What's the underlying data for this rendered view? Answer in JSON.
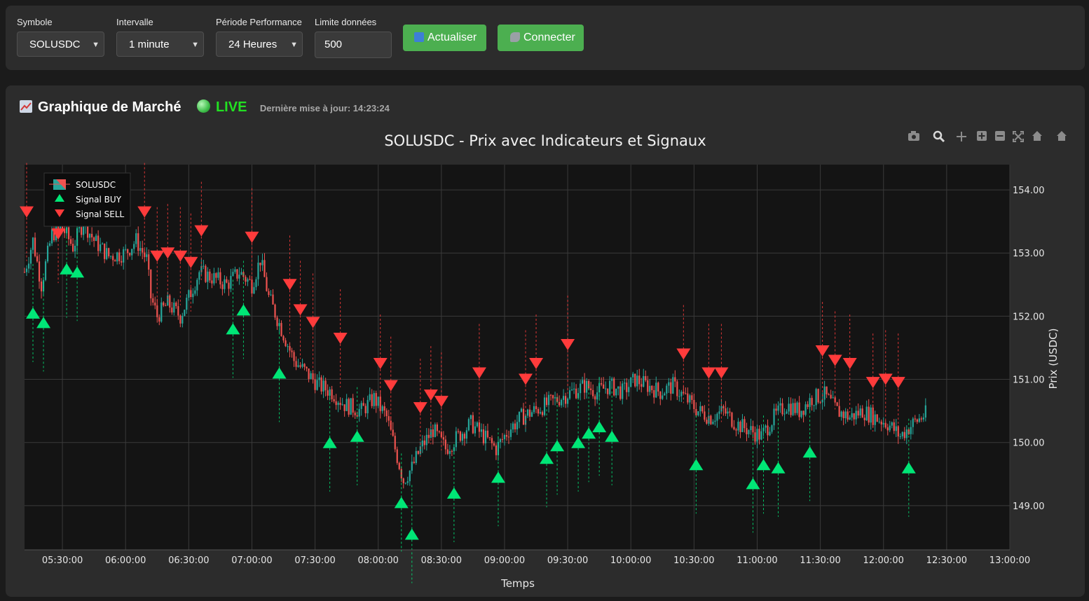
{
  "controls": {
    "symbol": {
      "label": "Symbole",
      "value": "SOLUSDC"
    },
    "interval": {
      "label": "Intervalle",
      "value": "1 minute"
    },
    "period": {
      "label": "Période Performance",
      "value": "24 Heures"
    },
    "limit": {
      "label": "Limite données",
      "value": "500"
    },
    "refresh_label": "Actualiser",
    "connect_label": "Connecter"
  },
  "header": {
    "title": "Graphique de Marché",
    "live_label": "LIVE",
    "last_update": "Dernière mise à jour: 14:23:24"
  },
  "toolbar_icons": [
    "camera-icon",
    "zoom-icon",
    "pan-icon",
    "zoom-in-icon",
    "zoom-out-icon",
    "autoscale-icon",
    "reset-axes-icon",
    "home-icon"
  ],
  "colors": {
    "up": "#26a69a",
    "down": "#ef5350",
    "buy": "#00e676",
    "sell": "#ff3b3b",
    "accent": "#4caf50"
  },
  "chart_data": {
    "type": "candlestick",
    "title": "SOLUSDC - Prix avec Indicateurs et Signaux",
    "xlabel": "Temps",
    "ylabel": "Prix (USDC)",
    "xlim": [
      "05:12:00",
      "13:00:00"
    ],
    "ylim": [
      148.3,
      154.4
    ],
    "x_ticks": [
      "05:30:00",
      "06:00:00",
      "06:30:00",
      "07:00:00",
      "07:30:00",
      "08:00:00",
      "08:30:00",
      "09:00:00",
      "09:30:00",
      "10:00:00",
      "10:30:00",
      "11:00:00",
      "11:30:00",
      "12:00:00",
      "12:30:00",
      "13:00:00"
    ],
    "y_ticks": [
      149,
      150,
      151,
      152,
      153,
      154
    ],
    "y_tick_labels": [
      "149.00",
      "150.00",
      "151.00",
      "152.00",
      "153.00",
      "154.00"
    ],
    "grid": true,
    "legend": {
      "position": "top-left",
      "items": [
        "SOLUSDC",
        "Signal BUY",
        "Signal SELL"
      ]
    },
    "price_path": [
      {
        "t": "05:12",
        "p": 152.7
      },
      {
        "t": "05:16",
        "p": 153.2
      },
      {
        "t": "05:20",
        "p": 152.5
      },
      {
        "t": "05:25",
        "p": 153.3
      },
      {
        "t": "05:30",
        "p": 153.4
      },
      {
        "t": "05:35",
        "p": 153.1
      },
      {
        "t": "05:40",
        "p": 153.5
      },
      {
        "t": "05:45",
        "p": 153.2
      },
      {
        "t": "05:52",
        "p": 152.95
      },
      {
        "t": "06:00",
        "p": 153.0
      },
      {
        "t": "06:05",
        "p": 153.2
      },
      {
        "t": "06:10",
        "p": 152.9
      },
      {
        "t": "06:12",
        "p": 152.3
      },
      {
        "t": "06:15",
        "p": 152.0
      },
      {
        "t": "06:20",
        "p": 152.2
      },
      {
        "t": "06:26",
        "p": 152.0
      },
      {
        "t": "06:30",
        "p": 152.3
      },
      {
        "t": "06:35",
        "p": 152.7
      },
      {
        "t": "06:42",
        "p": 152.6
      },
      {
        "t": "06:48",
        "p": 152.5
      },
      {
        "t": "06:54",
        "p": 152.7
      },
      {
        "t": "07:00",
        "p": 152.5
      },
      {
        "t": "07:04",
        "p": 152.9
      },
      {
        "t": "07:08",
        "p": 152.3
      },
      {
        "t": "07:14",
        "p": 151.8
      },
      {
        "t": "07:20",
        "p": 151.3
      },
      {
        "t": "07:26",
        "p": 151.1
      },
      {
        "t": "07:32",
        "p": 150.9
      },
      {
        "t": "07:38",
        "p": 150.8
      },
      {
        "t": "07:44",
        "p": 150.6
      },
      {
        "t": "07:52",
        "p": 150.5
      },
      {
        "t": "07:58",
        "p": 150.7
      },
      {
        "t": "08:04",
        "p": 150.4
      },
      {
        "t": "08:08",
        "p": 149.9
      },
      {
        "t": "08:12",
        "p": 149.4
      },
      {
        "t": "08:16",
        "p": 149.6
      },
      {
        "t": "08:20",
        "p": 149.9
      },
      {
        "t": "08:26",
        "p": 150.2
      },
      {
        "t": "08:32",
        "p": 149.9
      },
      {
        "t": "08:38",
        "p": 150.1
      },
      {
        "t": "08:44",
        "p": 150.3
      },
      {
        "t": "08:50",
        "p": 150.1
      },
      {
        "t": "08:56",
        "p": 149.9
      },
      {
        "t": "09:02",
        "p": 150.2
      },
      {
        "t": "09:08",
        "p": 150.4
      },
      {
        "t": "09:14",
        "p": 150.5
      },
      {
        "t": "09:20",
        "p": 150.6
      },
      {
        "t": "09:26",
        "p": 150.7
      },
      {
        "t": "09:32",
        "p": 150.8
      },
      {
        "t": "09:38",
        "p": 150.9
      },
      {
        "t": "09:44",
        "p": 150.8
      },
      {
        "t": "09:50",
        "p": 150.9
      },
      {
        "t": "09:56",
        "p": 150.8
      },
      {
        "t": "10:02",
        "p": 151.0
      },
      {
        "t": "10:08",
        "p": 150.9
      },
      {
        "t": "10:14",
        "p": 150.8
      },
      {
        "t": "10:20",
        "p": 150.9
      },
      {
        "t": "10:26",
        "p": 150.7
      },
      {
        "t": "10:32",
        "p": 150.5
      },
      {
        "t": "10:38",
        "p": 150.4
      },
      {
        "t": "10:44",
        "p": 150.5
      },
      {
        "t": "10:50",
        "p": 150.3
      },
      {
        "t": "10:56",
        "p": 150.2
      },
      {
        "t": "11:02",
        "p": 150.1
      },
      {
        "t": "11:08",
        "p": 150.4
      },
      {
        "t": "11:14",
        "p": 150.6
      },
      {
        "t": "11:20",
        "p": 150.5
      },
      {
        "t": "11:26",
        "p": 150.7
      },
      {
        "t": "11:32",
        "p": 150.75
      },
      {
        "t": "11:38",
        "p": 150.5
      },
      {
        "t": "11:44",
        "p": 150.4
      },
      {
        "t": "11:50",
        "p": 150.5
      },
      {
        "t": "11:56",
        "p": 150.4
      },
      {
        "t": "12:02",
        "p": 150.3
      },
      {
        "t": "12:08",
        "p": 150.1
      },
      {
        "t": "12:14",
        "p": 150.3
      },
      {
        "t": "12:20",
        "p": 150.45
      }
    ],
    "buy_signals": [
      {
        "t": "05:16",
        "p": 152.05
      },
      {
        "t": "05:21",
        "p": 151.9
      },
      {
        "t": "05:32",
        "p": 152.75
      },
      {
        "t": "05:37",
        "p": 152.7
      },
      {
        "t": "06:51",
        "p": 151.8
      },
      {
        "t": "06:56",
        "p": 152.1
      },
      {
        "t": "07:13",
        "p": 151.1
      },
      {
        "t": "07:37",
        "p": 150.0
      },
      {
        "t": "07:50",
        "p": 150.1
      },
      {
        "t": "08:11",
        "p": 149.05
      },
      {
        "t": "08:16",
        "p": 148.55
      },
      {
        "t": "08:36",
        "p": 149.2
      },
      {
        "t": "08:57",
        "p": 149.45
      },
      {
        "t": "09:20",
        "p": 149.75
      },
      {
        "t": "09:25",
        "p": 149.95
      },
      {
        "t": "09:35",
        "p": 150.0
      },
      {
        "t": "09:40",
        "p": 150.15
      },
      {
        "t": "09:45",
        "p": 150.25
      },
      {
        "t": "09:51",
        "p": 150.1
      },
      {
        "t": "10:31",
        "p": 149.65
      },
      {
        "t": "10:58",
        "p": 149.35
      },
      {
        "t": "11:03",
        "p": 149.65
      },
      {
        "t": "11:10",
        "p": 149.6
      },
      {
        "t": "11:25",
        "p": 149.85
      },
      {
        "t": "12:12",
        "p": 149.6
      }
    ],
    "sell_signals": [
      {
        "t": "05:13",
        "p": 153.65
      },
      {
        "t": "05:28",
        "p": 153.3
      },
      {
        "t": "06:09",
        "p": 153.65
      },
      {
        "t": "06:15",
        "p": 152.95
      },
      {
        "t": "06:20",
        "p": 153.0
      },
      {
        "t": "06:26",
        "p": 152.95
      },
      {
        "t": "06:31",
        "p": 152.85
      },
      {
        "t": "06:36",
        "p": 153.35
      },
      {
        "t": "07:00",
        "p": 153.25
      },
      {
        "t": "07:18",
        "p": 152.5
      },
      {
        "t": "07:23",
        "p": 152.1
      },
      {
        "t": "07:29",
        "p": 151.9
      },
      {
        "t": "07:42",
        "p": 151.65
      },
      {
        "t": "08:01",
        "p": 151.25
      },
      {
        "t": "08:06",
        "p": 150.9
      },
      {
        "t": "08:20",
        "p": 150.55
      },
      {
        "t": "08:25",
        "p": 150.75
      },
      {
        "t": "08:30",
        "p": 150.65
      },
      {
        "t": "08:48",
        "p": 151.1
      },
      {
        "t": "09:10",
        "p": 151.0
      },
      {
        "t": "09:15",
        "p": 151.25
      },
      {
        "t": "09:30",
        "p": 151.55
      },
      {
        "t": "10:25",
        "p": 151.4
      },
      {
        "t": "10:37",
        "p": 151.1
      },
      {
        "t": "10:43",
        "p": 151.1
      },
      {
        "t": "11:31",
        "p": 151.45
      },
      {
        "t": "11:37",
        "p": 151.3
      },
      {
        "t": "11:44",
        "p": 151.25
      },
      {
        "t": "11:55",
        "p": 150.95
      },
      {
        "t": "12:01",
        "p": 151.0
      },
      {
        "t": "12:07",
        "p": 150.95
      }
    ]
  }
}
